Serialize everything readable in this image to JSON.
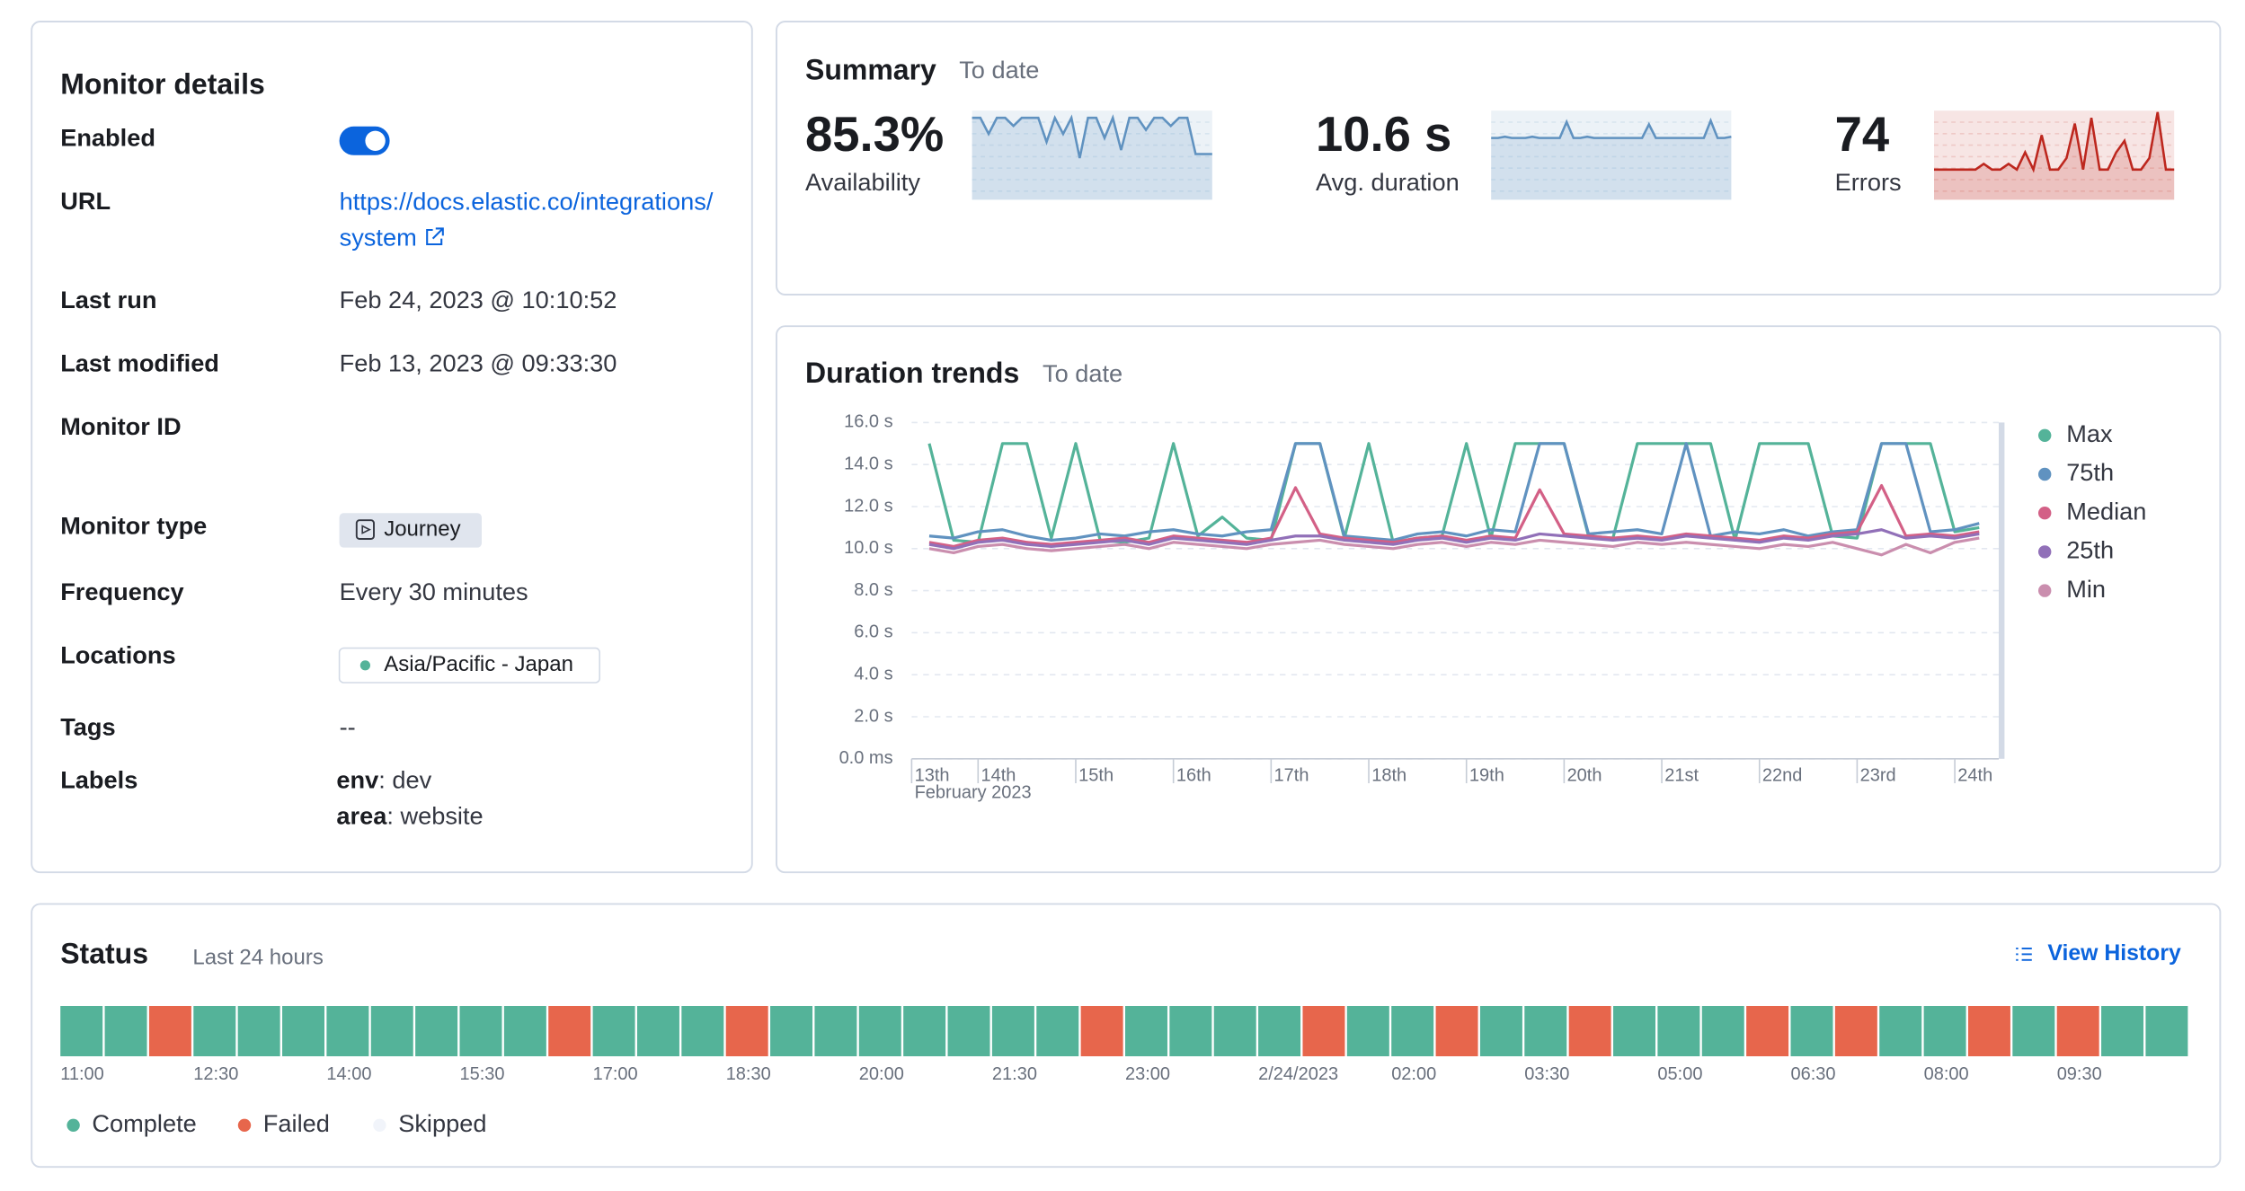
{
  "monitor_details": {
    "title": "Monitor details",
    "enabled_label": "Enabled",
    "enabled": true,
    "url_label": "URL",
    "url": "https://docs.elastic.co/integrations/system",
    "last_run_label": "Last run",
    "last_run": "Feb 24, 2023 @ 10:10:52",
    "last_modified_label": "Last modified",
    "last_modified": "Feb 13, 2023 @ 09:33:30",
    "monitor_id_label": "Monitor ID",
    "monitor_type_label": "Monitor type",
    "monitor_type": "Journey",
    "frequency_label": "Frequency",
    "frequency": "Every 30 minutes",
    "locations_label": "Locations",
    "location": "Asia/Pacific - Japan",
    "tags_label": "Tags",
    "tags": "--",
    "labels_label": "Labels",
    "labels": [
      {
        "key": "env",
        "value": ": dev"
      },
      {
        "key": "area",
        "value": ": website"
      }
    ]
  },
  "summary": {
    "title": "Summary",
    "subtitle": "To date",
    "metrics": [
      {
        "label": "Availability",
        "value": 85.3,
        "value_label": "85.3%",
        "color": "#cc4a32",
        "sparkline_color": "#6092c0",
        "sparkline": [
          100,
          100,
          92,
          100,
          100,
          96,
          100,
          100,
          100,
          88,
          100,
          92,
          100,
          80,
          100,
          100,
          90,
          100,
          84,
          100,
          100,
          94,
          100,
          100,
          96,
          100,
          100,
          82,
          82,
          82
        ]
      },
      {
        "label": "Avg. duration",
        "value": 10.6,
        "value_label": "10.6 s",
        "color": "#1a1c21",
        "sparkline_color": "#6092c0",
        "sparkline": [
          10.5,
          10.5,
          10.6,
          10.5,
          10.5,
          10.5,
          10.6,
          10.5,
          10.5,
          10.5,
          10.5,
          11.8,
          10.5,
          10.5,
          10.6,
          10.5,
          10.5,
          10.5,
          10.5,
          10.5,
          10.5,
          10.5,
          10.5,
          11.6,
          10.5,
          10.5,
          10.5,
          10.5,
          10.5,
          10.5,
          10.5,
          10.5,
          11.9,
          10.5,
          10.5,
          10.6
        ]
      },
      {
        "label": "Errors",
        "value": 74,
        "color": "#cc4a32",
        "sparkline_color": "#bd271e",
        "sparkline": [
          0,
          0,
          0,
          0,
          0,
          0,
          1,
          0,
          0,
          1,
          0,
          3,
          0,
          6,
          0,
          0,
          2,
          8,
          0,
          9,
          0,
          0,
          3,
          5,
          0,
          0,
          2,
          10,
          0,
          0
        ]
      }
    ]
  },
  "chart_data": {
    "type": "line",
    "title": "Duration trends",
    "subtitle": "To date",
    "x": [
      13.5,
      13.75,
      14,
      14.25,
      14.5,
      14.75,
      15,
      15.25,
      15.5,
      15.75,
      16,
      16.25,
      16.5,
      16.75,
      17,
      17.25,
      17.5,
      17.75,
      18,
      18.25,
      18.5,
      18.75,
      19,
      19.25,
      19.5,
      19.75,
      20,
      20.25,
      20.5,
      20.75,
      21,
      21.25,
      21.5,
      21.75,
      22,
      22.25,
      22.5,
      22.75,
      23,
      23.25,
      23.5,
      23.75,
      24,
      24.25
    ],
    "xlim": [
      13.32,
      24.45
    ],
    "xticks": [
      {
        "value": 13.32,
        "label": "13th"
      },
      {
        "value": 14,
        "label": "14th"
      },
      {
        "value": 15,
        "label": "15th"
      },
      {
        "value": 16,
        "label": "16th"
      },
      {
        "value": 17,
        "label": "17th"
      },
      {
        "value": 18,
        "label": "18th"
      },
      {
        "value": 19,
        "label": "19th"
      },
      {
        "value": 20,
        "label": "20th"
      },
      {
        "value": 21,
        "label": "21st"
      },
      {
        "value": 22,
        "label": "22nd"
      },
      {
        "value": 23,
        "label": "23rd"
      },
      {
        "value": 24,
        "label": "24th"
      }
    ],
    "x_sublabel": "February 2023",
    "ylim": [
      0,
      16
    ],
    "yticks": [
      {
        "value": 0,
        "label": "0.0 ms"
      },
      {
        "value": 2,
        "label": "2.0 s"
      },
      {
        "value": 4,
        "label": "4.0 s"
      },
      {
        "value": 6,
        "label": "6.0 s"
      },
      {
        "value": 8,
        "label": "8.0 s"
      },
      {
        "value": 10,
        "label": "10.0 s"
      },
      {
        "value": 12,
        "label": "12.0 s"
      },
      {
        "value": 14,
        "label": "14.0 s"
      },
      {
        "value": 16,
        "label": "16.0 s"
      }
    ],
    "grid": true,
    "legend": "right",
    "series": [
      {
        "name": "Max",
        "color": "#54b399",
        "values": [
          15,
          10.4,
          10.3,
          15,
          15,
          10.5,
          15,
          10.4,
          10.3,
          10.5,
          15,
          10.6,
          11.5,
          10.5,
          10.4,
          15,
          15,
          10.5,
          15,
          10.3,
          10.5,
          10.6,
          15,
          10.5,
          15,
          15,
          15,
          10.6,
          10.5,
          15,
          15,
          15,
          15,
          10.4,
          15,
          15,
          15,
          10.6,
          10.5,
          15,
          15,
          15,
          10.8,
          11
        ]
      },
      {
        "name": "75th",
        "color": "#6092c0",
        "values": [
          10.6,
          10.5,
          10.8,
          10.9,
          10.6,
          10.4,
          10.5,
          10.7,
          10.6,
          10.8,
          10.9,
          10.7,
          10.6,
          10.8,
          10.9,
          15,
          15,
          10.6,
          10.5,
          10.4,
          10.7,
          10.8,
          10.6,
          10.9,
          10.8,
          15,
          15,
          10.7,
          10.8,
          10.9,
          10.7,
          15,
          10.6,
          10.8,
          10.7,
          10.9,
          10.6,
          10.8,
          10.9,
          15,
          15,
          10.8,
          10.9,
          11.2
        ]
      },
      {
        "name": "Median",
        "color": "#d36086",
        "values": [
          10.3,
          10.1,
          10.4,
          10.5,
          10.3,
          10.2,
          10.3,
          10.4,
          10.5,
          10.3,
          10.6,
          10.5,
          10.4,
          10.3,
          10.5,
          12.9,
          10.7,
          10.5,
          10.4,
          10.3,
          10.5,
          10.6,
          10.4,
          10.6,
          10.5,
          12.8,
          10.7,
          10.6,
          10.5,
          10.6,
          10.5,
          10.7,
          10.6,
          10.5,
          10.4,
          10.6,
          10.5,
          10.7,
          10.8,
          13,
          10.6,
          10.7,
          10.6,
          10.8
        ]
      },
      {
        "name": "25th",
        "color": "#9170b8",
        "values": [
          10.2,
          10,
          10.3,
          10.4,
          10.2,
          10.1,
          10.2,
          10.3,
          10.4,
          10.2,
          10.5,
          10.4,
          10.3,
          10.2,
          10.4,
          10.6,
          10.6,
          10.4,
          10.3,
          10.2,
          10.4,
          10.5,
          10.3,
          10.5,
          10.4,
          10.7,
          10.6,
          10.5,
          10.4,
          10.5,
          10.4,
          10.6,
          10.5,
          10.4,
          10.3,
          10.5,
          10.4,
          10.6,
          10.7,
          10.9,
          10.5,
          10.6,
          10.5,
          10.7
        ]
      },
      {
        "name": "Min",
        "color": "#ca8eae",
        "values": [
          10,
          9.8,
          10.1,
          10.2,
          10,
          9.9,
          10,
          10.1,
          10.2,
          10,
          10.3,
          10.2,
          10.1,
          10,
          10.2,
          10.3,
          10.4,
          10.2,
          10.1,
          10,
          10.2,
          10.3,
          10.1,
          10.3,
          10.2,
          10.4,
          10.3,
          10.2,
          10.1,
          10.3,
          10.2,
          10.3,
          10.2,
          10.1,
          10,
          10.2,
          10.1,
          10.3,
          10,
          9.7,
          10.2,
          9.8,
          10.3,
          10.5
        ]
      }
    ]
  },
  "status": {
    "title": "Status",
    "subtitle": "Last 24 hours",
    "action": "View History",
    "cells": [
      "Complete",
      "Complete",
      "Failed",
      "Complete",
      "Complete",
      "Complete",
      "Complete",
      "Complete",
      "Complete",
      "Complete",
      "Complete",
      "Failed",
      "Complete",
      "Complete",
      "Complete",
      "Failed",
      "Complete",
      "Complete",
      "Complete",
      "Complete",
      "Complete",
      "Complete",
      "Complete",
      "Failed",
      "Complete",
      "Complete",
      "Complete",
      "Complete",
      "Failed",
      "Complete",
      "Complete",
      "Failed",
      "Complete",
      "Complete",
      "Failed",
      "Complete",
      "Complete",
      "Complete",
      "Failed",
      "Complete",
      "Failed",
      "Complete",
      "Complete",
      "Failed",
      "Complete",
      "Failed",
      "Complete",
      "Complete"
    ],
    "xticks": [
      {
        "value": 0,
        "label": "11:00"
      },
      {
        "value": 3,
        "label": "12:30"
      },
      {
        "value": 6,
        "label": "14:00"
      },
      {
        "value": 9,
        "label": "15:30"
      },
      {
        "value": 12,
        "label": "17:00"
      },
      {
        "value": 15,
        "label": "18:30"
      },
      {
        "value": 18,
        "label": "20:00"
      },
      {
        "value": 21,
        "label": "21:30"
      },
      {
        "value": 24,
        "label": "23:00"
      },
      {
        "value": 27,
        "label": "2/24/2023"
      },
      {
        "value": 30,
        "label": "02:00"
      },
      {
        "value": 33,
        "label": "03:30"
      },
      {
        "value": 36,
        "label": "05:00"
      },
      {
        "value": 39,
        "label": "06:30"
      },
      {
        "value": 42,
        "label": "08:00"
      },
      {
        "value": 45,
        "label": "09:30"
      }
    ],
    "legend": [
      {
        "name": "Complete",
        "color": "#54b399"
      },
      {
        "name": "Failed",
        "color": "#e7664c"
      },
      {
        "name": "Skipped",
        "color": "#f1f4fa"
      }
    ]
  }
}
